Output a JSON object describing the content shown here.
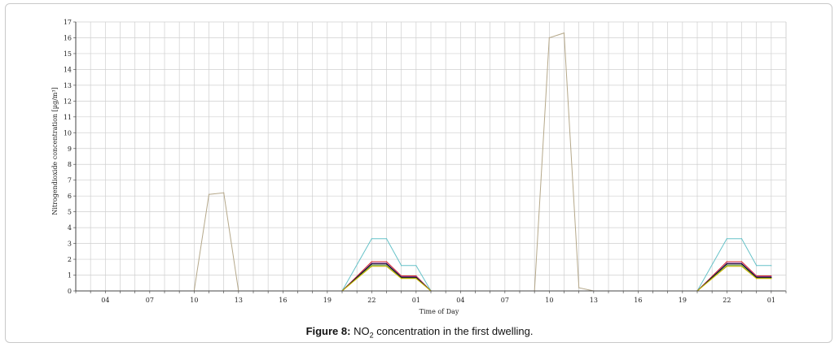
{
  "chart_data": {
    "type": "line",
    "ylabel": "Nitrogendioxide concentration [µg/m³]",
    "xlabel": "Time of Day",
    "ylim": [
      0,
      17
    ],
    "yticks": [
      0,
      1,
      2,
      3,
      4,
      5,
      6,
      7,
      8,
      9,
      10,
      11,
      12,
      13,
      14,
      15,
      16,
      17
    ],
    "xlim": [
      0,
      48
    ],
    "xticks": [
      {
        "x": 2,
        "label": "04"
      },
      {
        "x": 5,
        "label": "07"
      },
      {
        "x": 8,
        "label": "10"
      },
      {
        "x": 11,
        "label": "13"
      },
      {
        "x": 14,
        "label": "16"
      },
      {
        "x": 17,
        "label": "19"
      },
      {
        "x": 20,
        "label": "22"
      },
      {
        "x": 23,
        "label": "01"
      },
      {
        "x": 26,
        "label": "04"
      },
      {
        "x": 29,
        "label": "07"
      },
      {
        "x": 32,
        "label": "10"
      },
      {
        "x": 35,
        "label": "13"
      },
      {
        "x": 38,
        "label": "16"
      },
      {
        "x": 41,
        "label": "19"
      },
      {
        "x": 44,
        "label": "22"
      },
      {
        "x": 47,
        "label": "01"
      }
    ],
    "grid": true,
    "series": [
      {
        "color": "#b5a88a",
        "x": [
          0,
          8,
          9,
          10,
          11,
          31,
          32,
          33,
          34,
          35,
          47
        ],
        "y": [
          0,
          0,
          6.1,
          6.2,
          0,
          0,
          16,
          16.3,
          0.2,
          0,
          0
        ]
      },
      {
        "color": "#66c2c8",
        "x": [
          0,
          18,
          20,
          21,
          22,
          23,
          24,
          42,
          44,
          45,
          46,
          47
        ],
        "y": [
          0,
          0,
          3.3,
          3.3,
          1.6,
          1.6,
          0,
          0,
          3.3,
          3.3,
          1.6,
          1.6
        ]
      },
      {
        "color": "#d62a2a",
        "x": [
          0,
          18,
          20,
          21,
          22,
          23,
          24,
          42,
          44,
          45,
          46,
          47
        ],
        "y": [
          0,
          0,
          1.85,
          1.85,
          0.95,
          0.95,
          0,
          0,
          1.85,
          1.85,
          0.95,
          0.95
        ]
      },
      {
        "color": "#7a3fb0",
        "x": [
          0,
          18,
          20,
          21,
          22,
          23,
          24,
          42,
          44,
          45,
          46,
          47
        ],
        "y": [
          0,
          0,
          1.75,
          1.75,
          0.9,
          0.9,
          0,
          0,
          1.75,
          1.75,
          0.9,
          0.9
        ]
      },
      {
        "color": "#000000",
        "x": [
          0,
          18,
          20,
          21,
          22,
          23,
          24,
          42,
          44,
          45,
          46,
          47
        ],
        "y": [
          0,
          0,
          1.7,
          1.7,
          0.85,
          0.85,
          0,
          0,
          1.7,
          1.7,
          0.85,
          0.85
        ]
      },
      {
        "color": "#5aa03a",
        "x": [
          0,
          18,
          20,
          21,
          22,
          23,
          24,
          42,
          44,
          45,
          46,
          47
        ],
        "y": [
          0,
          0,
          1.6,
          1.6,
          0.8,
          0.8,
          0,
          0,
          1.6,
          1.6,
          0.8,
          0.8
        ]
      },
      {
        "color": "#d4b400",
        "x": [
          0,
          18,
          20,
          21,
          22,
          23,
          24,
          42,
          44,
          45,
          46,
          47
        ],
        "y": [
          0,
          0,
          1.55,
          1.55,
          0.78,
          0.78,
          0,
          0,
          1.55,
          1.55,
          0.78,
          0.78
        ]
      },
      {
        "color": "#2a4fd6",
        "x": [
          0,
          47
        ],
        "y": [
          0,
          0
        ]
      }
    ]
  },
  "caption": {
    "label": "Figure 8:",
    "text_before": "NO",
    "subscript": "2",
    "text_after": " concentration in the first dwelling."
  }
}
